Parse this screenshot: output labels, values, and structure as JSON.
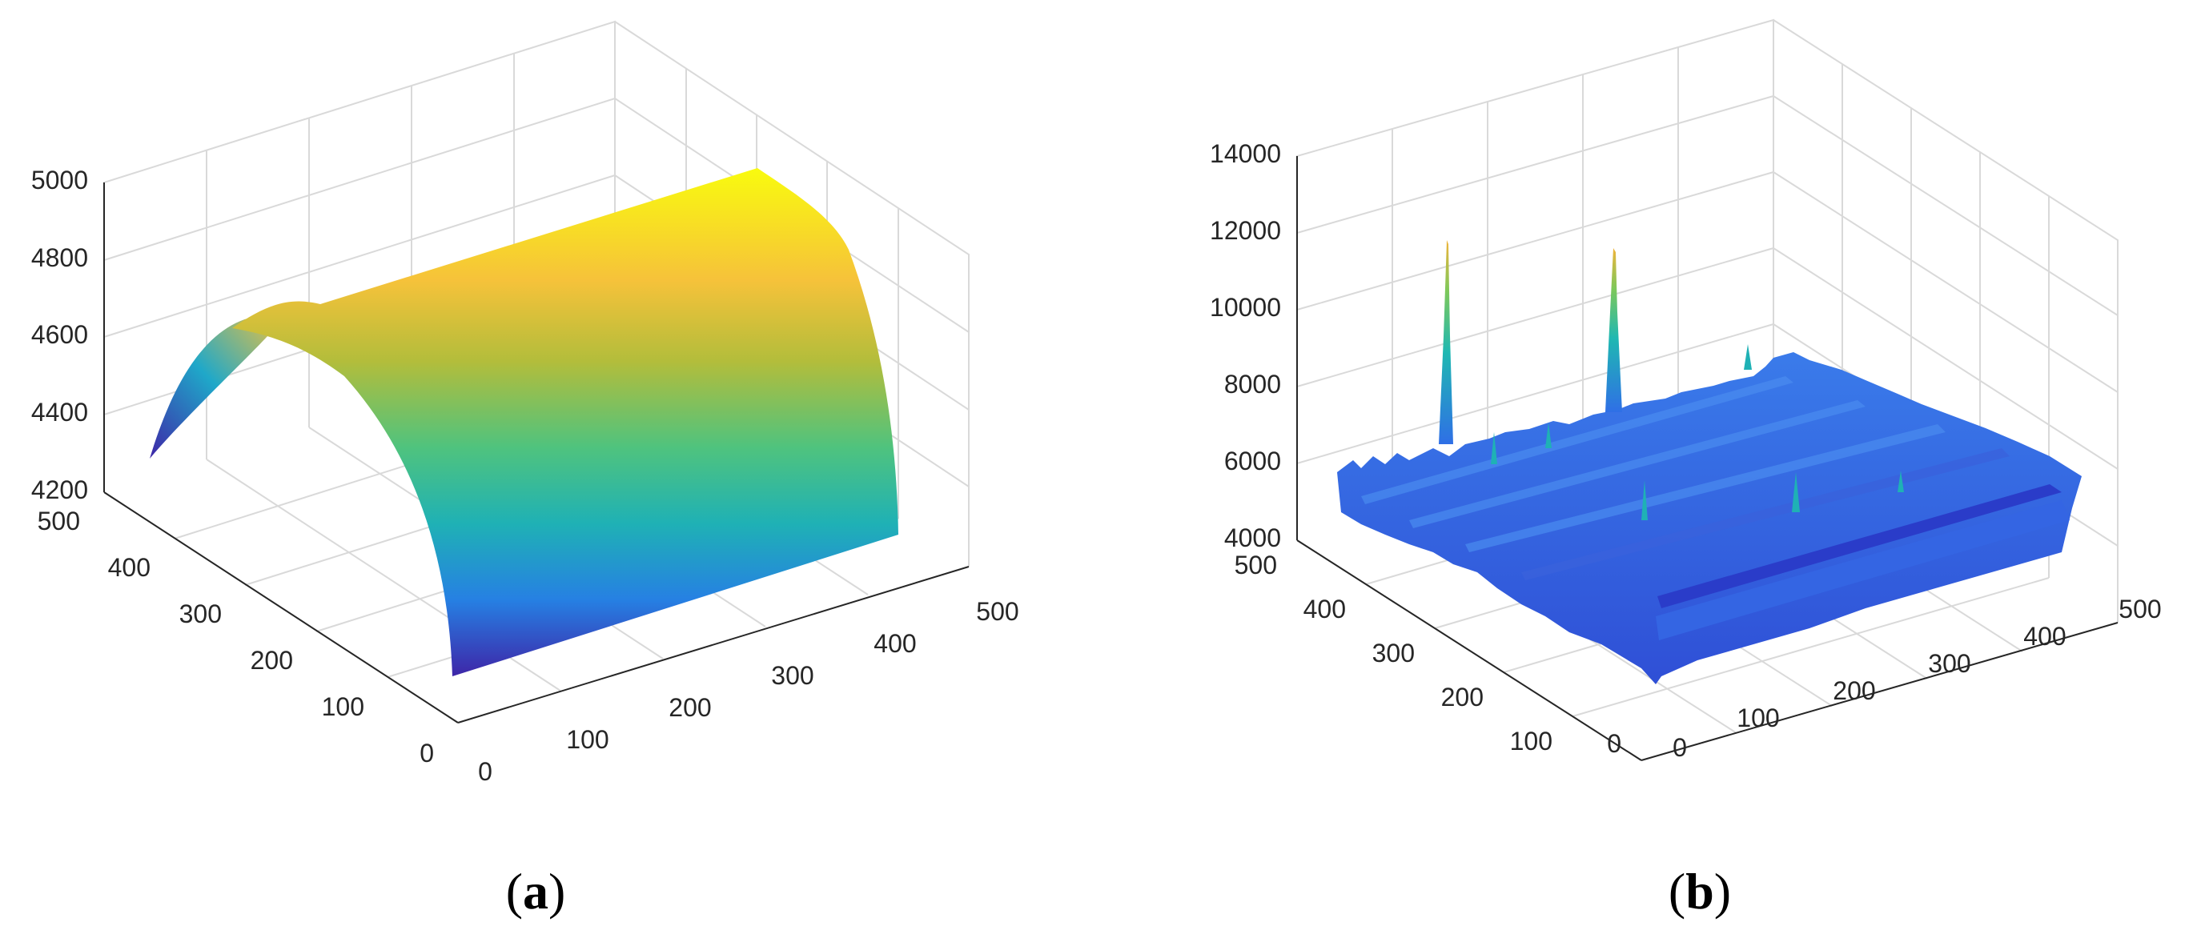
{
  "captions": {
    "a": {
      "letter": "a"
    },
    "b": {
      "letter": "b"
    }
  },
  "chart_data": [
    {
      "panel": "a",
      "type": "surface3d",
      "description_of_values": "Parabolic ridge surface along one horizontal axis, constant along the other",
      "x_range": [
        0,
        500
      ],
      "y_range": [
        0,
        500
      ],
      "z_range": [
        4200,
        5000
      ],
      "xticks": [
        "0",
        "100",
        "200",
        "300",
        "400",
        "500"
      ],
      "yticks": [
        "0",
        "100",
        "200",
        "300",
        "400",
        "500"
      ],
      "zticks": [
        "4200",
        "4400",
        "4600",
        "4800",
        "5000"
      ],
      "profile": {
        "y": [
          0,
          100,
          200,
          250,
          300,
          400,
          480
        ],
        "z": [
          4240,
          4720,
          4935,
          4960,
          4935,
          4720,
          4240
        ]
      },
      "grid": true,
      "colormap": "parula"
    },
    {
      "panel": "b",
      "type": "surface3d",
      "description_of_values": "Noisy, mostly flat surface with ridges and two sharp spikes",
      "x_range": [
        0,
        500
      ],
      "y_range": [
        0,
        500
      ],
      "z_range": [
        4000,
        14000
      ],
      "xticks": [
        "0",
        "100",
        "200",
        "300",
        "400",
        "500"
      ],
      "yticks": [
        "0",
        "100",
        "200",
        "300",
        "400",
        "500"
      ],
      "zticks": [
        "4000",
        "6000",
        "8000",
        "10000",
        "12000",
        "14000"
      ],
      "baseline_z": 5000,
      "peaks": [
        {
          "x": 20,
          "y": 300,
          "z": 10500
        },
        {
          "x": 130,
          "y": 450,
          "z": 10500
        }
      ],
      "grid": true,
      "colormap": "parula"
    }
  ]
}
